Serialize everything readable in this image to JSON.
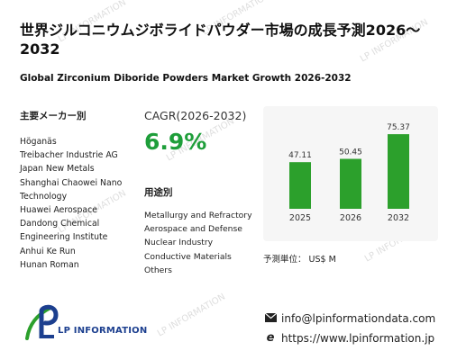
{
  "header": {
    "title": "世界ジルコニウムジボライドパウダー市場の成長予測2026～2032",
    "subtitle": "Global Zirconium Diboride Powders Market Growth 2026-2032"
  },
  "manufacturers": {
    "heading": "主要メーカー別",
    "items": [
      "Höganäs",
      "Treibacher Industrie AG",
      "Japan New Metals",
      "Shanghai Chaowei Nano",
      "Technology",
      "Huawei Aerospace",
      "Dandong Chemical",
      "Engineering Institute",
      "Anhui Ke Run",
      "Hunan Roman"
    ]
  },
  "cagr": {
    "label": "CAGR(2026-2032)",
    "value": "6.9%"
  },
  "applications": {
    "heading": "用途別",
    "items": [
      "Metallurgy and Refractory",
      "Aerospace and Defense",
      "Nuclear Industry",
      "Conductive Materials",
      "Others"
    ]
  },
  "chart_data": {
    "type": "bar",
    "categories": [
      "2025",
      "2026",
      "2032"
    ],
    "values": [
      47.11,
      50.45,
      75.37
    ],
    "data_labels": [
      "47.11",
      "50.45",
      "75.37"
    ],
    "title": "",
    "xlabel": "",
    "ylabel": "",
    "ylim": [
      0,
      80
    ],
    "grid": false,
    "bar_color": "#2ca02c"
  },
  "unit": "予測単位： US$ M",
  "contact": {
    "email": "info@lpinformationdata.com",
    "website": "https://www.lpinformation.jp",
    "email_icon": "envelope-icon",
    "web_icon": "globe-e-icon"
  },
  "logo": {
    "text": "LP INFORMATION",
    "color": "#1c3f8f",
    "accent": "#2ca02c"
  },
  "colors": {
    "accent_green": "#1e9e3a",
    "panel_bg": "#f6f6f6"
  }
}
